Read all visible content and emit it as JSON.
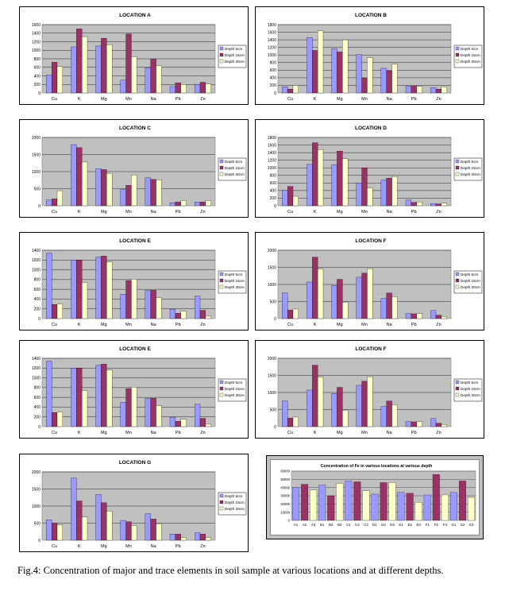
{
  "depth_legend": [
    "Depth 5cm",
    "Depth 15cm",
    "Depth 30cm"
  ],
  "colors": {
    "blue": "#9999ff",
    "plum": "#993366",
    "cream": "#ffffcc",
    "plot_bg": "#c0c0c0"
  },
  "chart_data": [
    {
      "type": "bar",
      "title": "LOCATION A",
      "categories": [
        "Cu",
        "K",
        "Mg",
        "Mn",
        "Na",
        "Pb",
        "Zn"
      ],
      "yticks": [
        "0",
        "200",
        "400",
        "600",
        "800",
        "1000",
        "1200",
        "1400",
        "1600"
      ],
      "ylim": [
        0,
        1600
      ],
      "series": [
        {
          "name": "Depth 5cm",
          "values": [
            420,
            1080,
            1100,
            300,
            590,
            150,
            200
          ]
        },
        {
          "name": "Depth 15cm",
          "values": [
            720,
            1500,
            1280,
            1380,
            790,
            240,
            250
          ]
        },
        {
          "name": "Depth 30cm",
          "values": [
            620,
            1320,
            1130,
            850,
            640,
            200,
            210
          ]
        }
      ]
    },
    {
      "type": "bar",
      "title": "LOCATION B",
      "categories": [
        "Cu",
        "K",
        "Mg",
        "Mn",
        "Na",
        "Pb",
        "Zn"
      ],
      "yticks": [
        "0",
        "200",
        "400",
        "600",
        "800",
        "1000",
        "1200",
        "1400",
        "1600",
        "1800"
      ],
      "ylim": [
        0,
        1800
      ],
      "series": [
        {
          "name": "Depth 5cm",
          "values": [
            160,
            1460,
            1170,
            1010,
            650,
            180,
            140
          ]
        },
        {
          "name": "Depth 15cm",
          "values": [
            100,
            1120,
            1080,
            390,
            580,
            180,
            100
          ]
        },
        {
          "name": "Depth 30cm",
          "values": [
            200,
            1640,
            1400,
            930,
            760,
            170,
            160
          ]
        }
      ]
    },
    {
      "type": "bar",
      "title": "LOCATION C",
      "categories": [
        "Cu",
        "K",
        "Mg",
        "Mn",
        "Na",
        "Pb",
        "Zn"
      ],
      "yticks": [
        "0",
        "500",
        "1000",
        "1500",
        "2000"
      ],
      "ylim": [
        0,
        2000
      ],
      "series": [
        {
          "name": "Depth 5cm",
          "values": [
            170,
            1790,
            1090,
            470,
            820,
            90,
            110
          ]
        },
        {
          "name": "Depth 15cm",
          "values": [
            200,
            1700,
            1060,
            600,
            770,
            110,
            110
          ]
        },
        {
          "name": "Depth 30cm",
          "values": [
            440,
            1280,
            950,
            900,
            760,
            150,
            150
          ]
        }
      ]
    },
    {
      "type": "bar",
      "title": "LOCATION D",
      "categories": [
        "Cu",
        "K",
        "Mg",
        "Mn",
        "Na",
        "Pb",
        "Zn"
      ],
      "yticks": [
        "0",
        "200",
        "400",
        "600",
        "800",
        "1000",
        "1200",
        "1400",
        "1600",
        "1800"
      ],
      "ylim": [
        0,
        1800
      ],
      "series": [
        {
          "name": "Depth 5cm",
          "values": [
            400,
            1090,
            1080,
            600,
            680,
            150,
            60
          ]
        },
        {
          "name": "Depth 15cm",
          "values": [
            510,
            1660,
            1440,
            1000,
            730,
            90,
            50
          ]
        },
        {
          "name": "Depth 30cm",
          "values": [
            250,
            1480,
            1240,
            470,
            770,
            100,
            70
          ]
        }
      ]
    },
    {
      "type": "bar",
      "title": "LOCATION E",
      "categories": [
        "Cu",
        "K",
        "Mg",
        "Mn",
        "Na",
        "Pb",
        "Zn"
      ],
      "yticks": [
        "0",
        "200",
        "400",
        "600",
        "800",
        "1000",
        "1200",
        "1400"
      ],
      "ylim": [
        0,
        1400
      ],
      "series": [
        {
          "name": "Depth 5cm",
          "values": [
            1340,
            1200,
            1260,
            500,
            580,
            190,
            460
          ]
        },
        {
          "name": "Depth 15cm",
          "values": [
            290,
            1200,
            1280,
            780,
            580,
            110,
            170
          ]
        },
        {
          "name": "Depth 30cm",
          "values": [
            300,
            740,
            1160,
            810,
            430,
            150,
            50
          ]
        }
      ]
    },
    {
      "type": "bar",
      "title": "LOCATION F",
      "categories": [
        "Cu",
        "K",
        "Mg",
        "Mn",
        "Na",
        "Pb",
        "Zn"
      ],
      "yticks": [
        "0",
        "500",
        "1000",
        "1500",
        "2000"
      ],
      "ylim": [
        0,
        2000
      ],
      "series": [
        {
          "name": "Depth 5cm",
          "values": [
            750,
            1070,
            970,
            1210,
            590,
            150,
            240
          ]
        },
        {
          "name": "Depth 15cm",
          "values": [
            250,
            1800,
            1150,
            1330,
            750,
            140,
            100
          ]
        },
        {
          "name": "Depth 30cm",
          "values": [
            280,
            1450,
            480,
            1460,
            640,
            150,
            60
          ]
        }
      ]
    },
    {
      "type": "bar",
      "title": "LOCATION E",
      "categories": [
        "Cu",
        "K",
        "Mg",
        "Mn",
        "Na",
        "Pb",
        "Zn"
      ],
      "yticks": [
        "0",
        "200",
        "400",
        "600",
        "800",
        "1000",
        "1200",
        "1400"
      ],
      "ylim": [
        0,
        1400
      ],
      "series": [
        {
          "name": "Depth 5cm",
          "values": [
            1340,
            1200,
            1260,
            500,
            580,
            190,
            460
          ]
        },
        {
          "name": "Depth 15cm",
          "values": [
            290,
            1200,
            1280,
            780,
            580,
            110,
            170
          ]
        },
        {
          "name": "Depth 30cm",
          "values": [
            300,
            740,
            1160,
            810,
            430,
            150,
            50
          ]
        }
      ]
    },
    {
      "type": "bar",
      "title": "LOCATION F",
      "categories": [
        "Cu",
        "K",
        "Mg",
        "Mn",
        "Na",
        "Pb",
        "Zn"
      ],
      "yticks": [
        "0",
        "500",
        "1000",
        "1500",
        "2000"
      ],
      "ylim": [
        0,
        2000
      ],
      "series": [
        {
          "name": "Depth 5cm",
          "values": [
            750,
            1070,
            970,
            1210,
            590,
            150,
            240
          ]
        },
        {
          "name": "Depth 15cm",
          "values": [
            250,
            1800,
            1150,
            1330,
            750,
            140,
            100
          ]
        },
        {
          "name": "Depth 30cm",
          "values": [
            280,
            1450,
            480,
            1460,
            640,
            150,
            60
          ]
        }
      ]
    },
    {
      "type": "bar",
      "title": "LOCATION G",
      "categories": [
        "Cu",
        "K",
        "Mg",
        "Mn",
        "Na",
        "Pb",
        "Zn"
      ],
      "yticks": [
        "0",
        "500",
        "1000",
        "1500",
        "2000"
      ],
      "ylim": [
        0,
        2000
      ],
      "series": [
        {
          "name": "Depth 5cm",
          "values": [
            600,
            1820,
            1340,
            580,
            780,
            180,
            220
          ]
        },
        {
          "name": "Depth 15cm",
          "values": [
            500,
            1150,
            1100,
            540,
            620,
            180,
            180
          ]
        },
        {
          "name": "Depth 30cm",
          "values": [
            450,
            680,
            850,
            430,
            480,
            80,
            80
          ]
        }
      ]
    },
    {
      "type": "bar",
      "title": "Concentration of Fe in various locations at various depth",
      "categories": [
        "A1",
        "A2",
        "A3",
        "B1",
        "B2",
        "B3",
        "C1",
        "C2",
        "C3",
        "D1",
        "D2",
        "D3",
        "E1",
        "E2",
        "E3",
        "F1",
        "F2",
        "F3",
        "G1",
        "G2",
        "G3"
      ],
      "yticks": [
        "0",
        "10000",
        "20000",
        "30000",
        "40000",
        "50000",
        "60000"
      ],
      "ylim": [
        0,
        60000
      ],
      "values": [
        40000,
        44000,
        37000,
        43000,
        30000,
        45000,
        48000,
        47000,
        36000,
        32000,
        46000,
        46000,
        34000,
        33000,
        22000,
        31000,
        56000,
        31000,
        34000,
        48000,
        28000
      ]
    }
  ],
  "caption": "Fig.4: Concentration of major and trace elements in soil sample at various locations and at different depths."
}
